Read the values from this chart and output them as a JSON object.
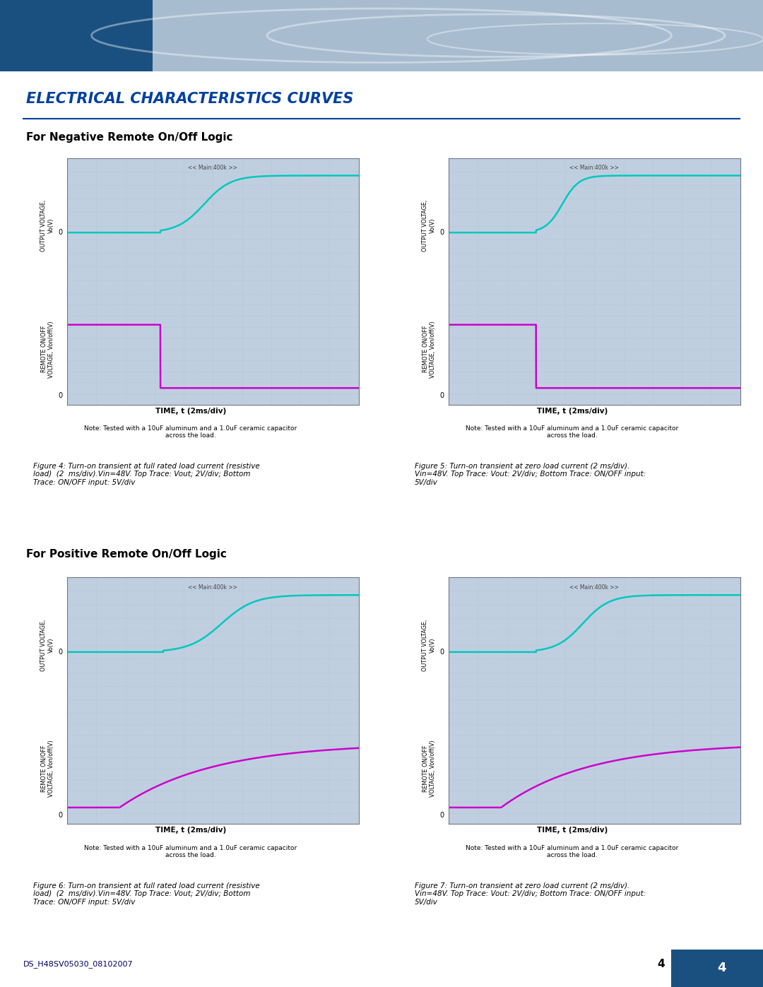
{
  "main_title": "ELECTRICAL CHARACTERISTICS CURVES",
  "section1_title": "For Negative Remote On/Off Logic",
  "section2_title": "For Positive Remote On/Off Logic",
  "fig4_caption_bold": "Figure 4:",
  "fig4_caption_rest": " Turn-on transient at full rated load current (resistive\nload)  (2  ms/div).Vin=48V. Top Trace: Vout; 2V/div; Bottom\nTrace: ON/OFF input: 5V/div",
  "fig5_caption_bold": "Figure 5:",
  "fig5_caption_rest": " Turn-on transient at zero load current (2 ms/div).\nVin=48V. Top Trace: Vout: 2V/div; Bottom Trace: ON/OFF input:\n5V/div",
  "fig6_caption_bold": "Figure 6:",
  "fig6_caption_rest": " Turn-on transient at full rated load current (resistive\nload)  (2  ms/div).Vin=48V. Top Trace: Vout; 2V/div; Bottom\nTrace: ON/OFF input: 5V/div",
  "fig7_caption_bold": "Figure 7:",
  "fig7_caption_rest": " Turn-on transient at zero load current (2 ms/div).\nVin=48V. Top Trace: Vout: 2V/div; Bottom Trace: ON/OFF input:\n5V/div",
  "xlabel": "TIME, t (2ms/div)",
  "note": "Note: Tested with a 10uF aluminum and a 1.0uF ceramic capacitor\nacross the load.",
  "ylabel_top": "OUTPUT VOLTAGE,\nVo(V)",
  "ylabel_bot": "REMOTE ON/OFF\nVOLTAGE, Von/off(V)",
  "grid_color": "#a8b8cc",
  "oscilloscope_bg": "#c0cfe0",
  "cyan_color": "#00c8be",
  "magenta_color": "#cc00cc",
  "border_color": "#707888",
  "header_bg1": "#1a5080",
  "header_bg2": "#a8bcd0",
  "title_color": "#0040a0",
  "section_title_color": "#000000",
  "footer_color": "#000060",
  "page_bg": "#ffffff",
  "ds_text": "DS_H48SV05030_08102007",
  "page_num": "4",
  "main_label": "<< Main:400k >>"
}
